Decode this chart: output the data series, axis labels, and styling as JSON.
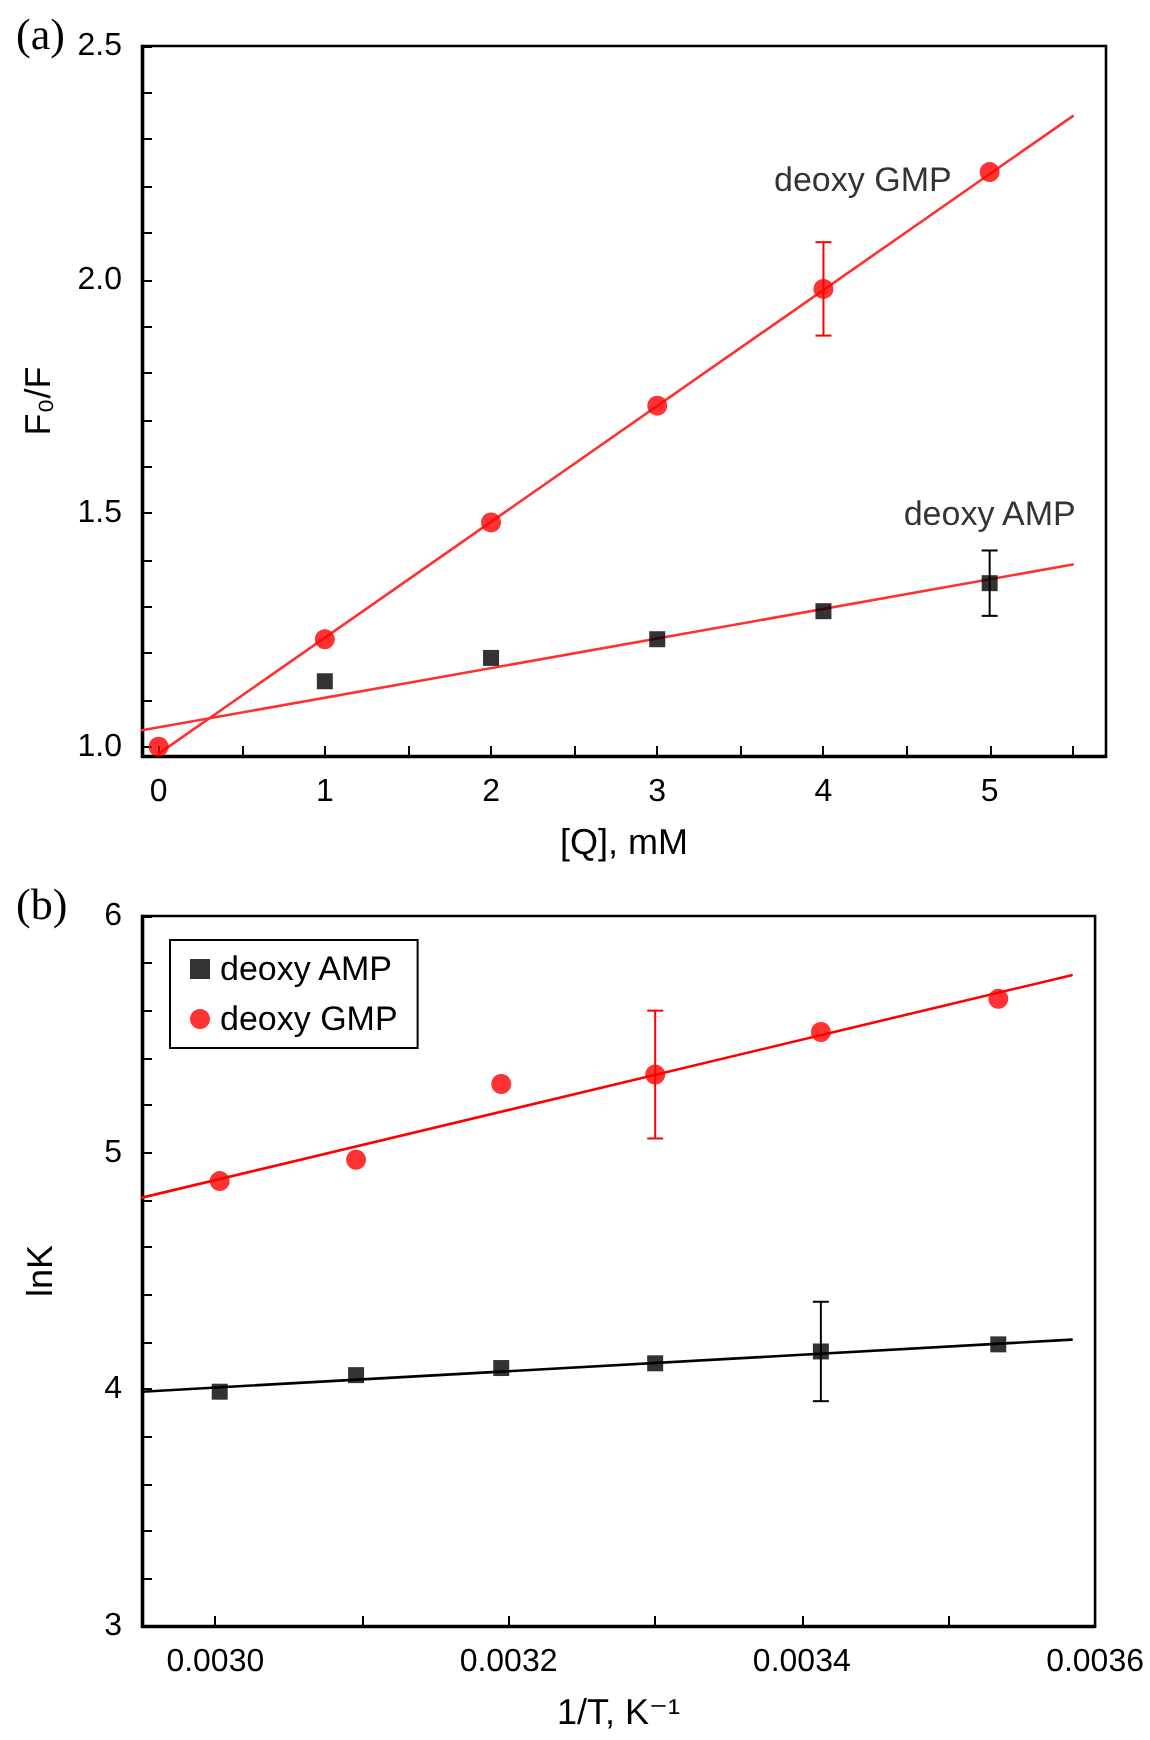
{
  "chart_data": [
    {
      "type": "scatter",
      "annotations": [
        "(a)"
      ],
      "xlabel": "[Q], mM",
      "ylabel": "F₀/F",
      "legend": false,
      "grid": false,
      "xlim": [
        -0.1,
        5.7
      ],
      "ylim": [
        0.98,
        2.5
      ],
      "xticks": [
        0,
        {
          "value": 0.5,
          "label": null
        },
        1,
        {
          "value": 1.5,
          "label": null
        },
        2,
        {
          "value": 2.5,
          "label": null
        },
        3,
        {
          "value": 3.5,
          "label": null
        },
        4,
        {
          "value": 4.5,
          "label": null
        },
        5,
        {
          "value": 5.5,
          "label": null
        }
      ],
      "yticks": [
        {
          "value": 1,
          "label": "1.0"
        },
        {
          "value": 1.1,
          "label": null
        },
        {
          "value": 1.2,
          "label": null
        },
        {
          "value": 1.3,
          "label": null
        },
        {
          "value": 1.4,
          "label": null
        },
        1.5,
        {
          "value": 1.6,
          "label": null
        },
        {
          "value": 1.7,
          "label": null
        },
        {
          "value": 1.8,
          "label": null
        },
        {
          "value": 1.9,
          "label": null
        },
        {
          "value": 2,
          "label": "2.0"
        },
        {
          "value": 2.1,
          "label": null
        },
        {
          "value": 2.2,
          "label": null
        },
        {
          "value": 2.3,
          "label": null
        },
        {
          "value": 2.4,
          "label": null
        },
        2.5
      ],
      "series": [
        {
          "name": "deoxy AMP",
          "type": "scatter",
          "marker": "square",
          "color": "#000000",
          "x": [
            1,
            2,
            3,
            4,
            5
          ],
          "values": [
            1.14,
            1.19,
            1.23,
            1.29,
            1.35
          ],
          "errors": [
            null,
            null,
            null,
            null,
            0.07
          ]
        },
        {
          "name": "deoxy GMP",
          "type": "scatter",
          "marker": "circle",
          "color": "#ff0000",
          "x": [
            0,
            1,
            2,
            3,
            4,
            5
          ],
          "values": [
            1.0,
            1.23,
            1.48,
            1.73,
            1.98,
            2.23
          ],
          "errors": [
            null,
            null,
            null,
            null,
            0.1,
            null
          ]
        },
        {
          "type": "line",
          "marker": "none",
          "color": "#ff3030",
          "x": [
            -0.1,
            5.5
          ],
          "values": [
            1.035,
            1.39
          ]
        },
        {
          "type": "line",
          "marker": "none",
          "color": "#ff3030",
          "x": [
            0,
            5.5
          ],
          "values": [
            0.985,
            2.35
          ]
        }
      ]
    },
    {
      "type": "scatter",
      "annotations": [
        "(b)"
      ],
      "xlabel": "1/T, K⁻¹",
      "ylabel": "lnK",
      "legend": "top left",
      "grid": false,
      "xlim": [
        0.00295,
        0.0036
      ],
      "ylim": [
        3,
        6
      ],
      "xticks": [
        {
          "value": 0.003,
          "label": "0.0030"
        },
        {
          "value": 0.0031,
          "label": null
        },
        {
          "value": 0.0032,
          "label": "0.0032"
        },
        {
          "value": 0.0033,
          "label": null
        },
        {
          "value": 0.0034,
          "label": "0.0034"
        },
        {
          "value": 0.0035,
          "label": null
        },
        {
          "value": 0.0036,
          "label": "0.0036"
        }
      ],
      "yticks": [
        3,
        {
          "value": 3.2,
          "label": null
        },
        {
          "value": 3.4,
          "label": null
        },
        {
          "value": 3.6,
          "label": null
        },
        {
          "value": 3.8,
          "label": null
        },
        4,
        {
          "value": 4.2,
          "label": null
        },
        {
          "value": 4.4,
          "label": null
        },
        {
          "value": 4.6,
          "label": null
        },
        {
          "value": 4.8,
          "label": null
        },
        5,
        {
          "value": 5.2,
          "label": null
        },
        {
          "value": 5.4,
          "label": null
        },
        {
          "value": 5.6,
          "label": null
        },
        {
          "value": 5.8,
          "label": null
        },
        6
      ],
      "series": [
        {
          "name": "deoxy AMP",
          "type": "scatter",
          "marker": "square",
          "color": "#000000",
          "x": [
            0.003003,
            0.003096,
            0.003195,
            0.0033,
            0.003413,
            0.003534
          ],
          "values": [
            3.99,
            4.06,
            4.09,
            4.11,
            4.16,
            4.19
          ],
          "errors": [
            null,
            null,
            null,
            null,
            0.21,
            null
          ]
        },
        {
          "name": "deoxy GMP",
          "type": "scatter",
          "marker": "circle",
          "color": "#ff0000",
          "x": [
            0.003003,
            0.003096,
            0.003195,
            0.0033,
            0.003413,
            0.003534
          ],
          "values": [
            4.88,
            4.97,
            5.29,
            5.33,
            5.51,
            5.65
          ],
          "errors": [
            null,
            null,
            null,
            0.27,
            null,
            null
          ]
        },
        {
          "type": "line",
          "marker": "none",
          "color": "#000000",
          "x": [
            0.00295,
            0.003584
          ],
          "values": [
            3.99,
            4.21
          ]
        },
        {
          "type": "line",
          "marker": "none",
          "color": "#ff0000",
          "x": [
            0.00295,
            0.003584
          ],
          "values": [
            4.81,
            5.75
          ]
        }
      ]
    }
  ]
}
